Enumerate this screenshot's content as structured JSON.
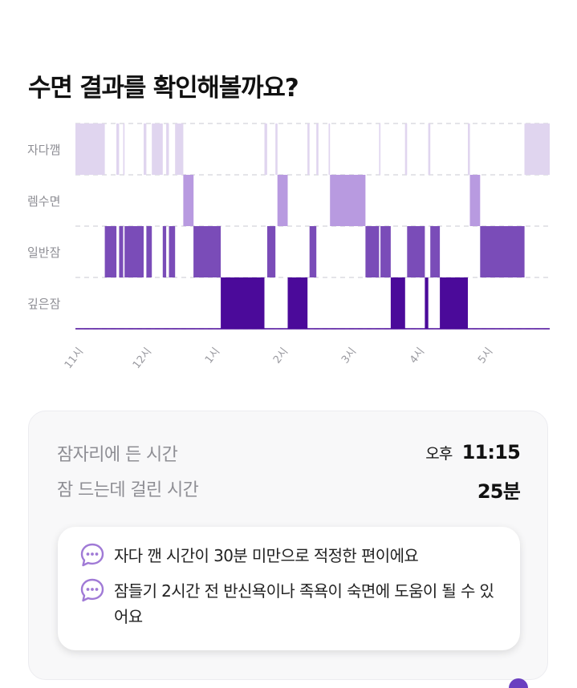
{
  "page": {
    "title": "수면 결과를 확인해볼까요?"
  },
  "chart_data": {
    "type": "hypnogram",
    "stages": [
      "자다깸",
      "렘수면",
      "일반잠",
      "깊은잠"
    ],
    "x_ticks": [
      "11시",
      "12시",
      "1시",
      "2시",
      "3시",
      "4시",
      "5시"
    ],
    "x_tick_hours": [
      23,
      24,
      25,
      26,
      27,
      28,
      29
    ],
    "xlim": [
      23.0,
      29.95
    ],
    "colors": [
      "#e0d5ef",
      "#b89ae0",
      "#7a4cb8",
      "#4b0a9a"
    ],
    "segments": [
      {
        "stage": 0,
        "start": 23.0,
        "end": 23.43
      },
      {
        "stage": 0,
        "start": 23.6,
        "end": 23.64
      },
      {
        "stage": 0,
        "start": 23.7,
        "end": 23.72
      },
      {
        "stage": 2,
        "start": 23.43,
        "end": 23.6
      },
      {
        "stage": 2,
        "start": 23.64,
        "end": 23.7
      },
      {
        "stage": 2,
        "start": 23.72,
        "end": 24.0
      },
      {
        "stage": 0,
        "start": 24.0,
        "end": 24.04
      },
      {
        "stage": 2,
        "start": 24.04,
        "end": 24.12
      },
      {
        "stage": 0,
        "start": 24.12,
        "end": 24.28
      },
      {
        "stage": 2,
        "start": 24.28,
        "end": 24.33
      },
      {
        "stage": 0,
        "start": 24.33,
        "end": 24.37
      },
      {
        "stage": 2,
        "start": 24.37,
        "end": 24.46
      },
      {
        "stage": 0,
        "start": 24.46,
        "end": 24.58
      },
      {
        "stage": 1,
        "start": 24.58,
        "end": 24.73
      },
      {
        "stage": 2,
        "start": 24.73,
        "end": 25.13
      },
      {
        "stage": 3,
        "start": 25.13,
        "end": 25.77
      },
      {
        "stage": 0,
        "start": 25.77,
        "end": 25.81
      },
      {
        "stage": 2,
        "start": 25.81,
        "end": 25.93
      },
      {
        "stage": 0,
        "start": 25.93,
        "end": 25.96
      },
      {
        "stage": 1,
        "start": 25.96,
        "end": 26.11
      },
      {
        "stage": 3,
        "start": 26.11,
        "end": 26.4
      },
      {
        "stage": 0,
        "start": 26.4,
        "end": 26.43
      },
      {
        "stage": 2,
        "start": 26.43,
        "end": 26.53
      },
      {
        "stage": 0,
        "start": 26.53,
        "end": 26.56
      },
      {
        "stage": 0,
        "start": 26.71,
        "end": 26.73
      },
      {
        "stage": 1,
        "start": 26.73,
        "end": 27.25
      },
      {
        "stage": 2,
        "start": 27.25,
        "end": 27.45
      },
      {
        "stage": 0,
        "start": 27.45,
        "end": 27.47
      },
      {
        "stage": 2,
        "start": 27.47,
        "end": 27.62
      },
      {
        "stage": 3,
        "start": 27.62,
        "end": 27.83
      },
      {
        "stage": 0,
        "start": 27.83,
        "end": 27.86
      },
      {
        "stage": 2,
        "start": 27.86,
        "end": 28.12
      },
      {
        "stage": 3,
        "start": 28.12,
        "end": 28.17
      },
      {
        "stage": 0,
        "start": 28.17,
        "end": 28.2
      },
      {
        "stage": 2,
        "start": 28.2,
        "end": 28.34
      },
      {
        "stage": 3,
        "start": 28.34,
        "end": 28.75
      },
      {
        "stage": 0,
        "start": 28.75,
        "end": 28.78
      },
      {
        "stage": 1,
        "start": 28.78,
        "end": 28.93
      },
      {
        "stage": 2,
        "start": 28.93,
        "end": 29.58
      },
      {
        "stage": 0,
        "start": 29.58,
        "end": 29.95
      }
    ]
  },
  "summary": {
    "bedtime_label": "잠자리에 든 시간",
    "bedtime_ampm": "오후",
    "bedtime_value": "11:15",
    "latency_label": "잠 드는데 걸린 시간",
    "latency_value": "25분",
    "tips": [
      {
        "icon": "chat-bubble-icon",
        "text": "자다 깬 시간이 30분 미만으로 적정한 편이에요"
      },
      {
        "icon": "chat-bubble-icon",
        "text": "잠들기 2시간 전 반신욕이나 족욕이 숙면에 도움이 될 수 있어요"
      }
    ]
  },
  "colors": {
    "accent": "#6a3fc0",
    "icon": "#a07ad6"
  }
}
